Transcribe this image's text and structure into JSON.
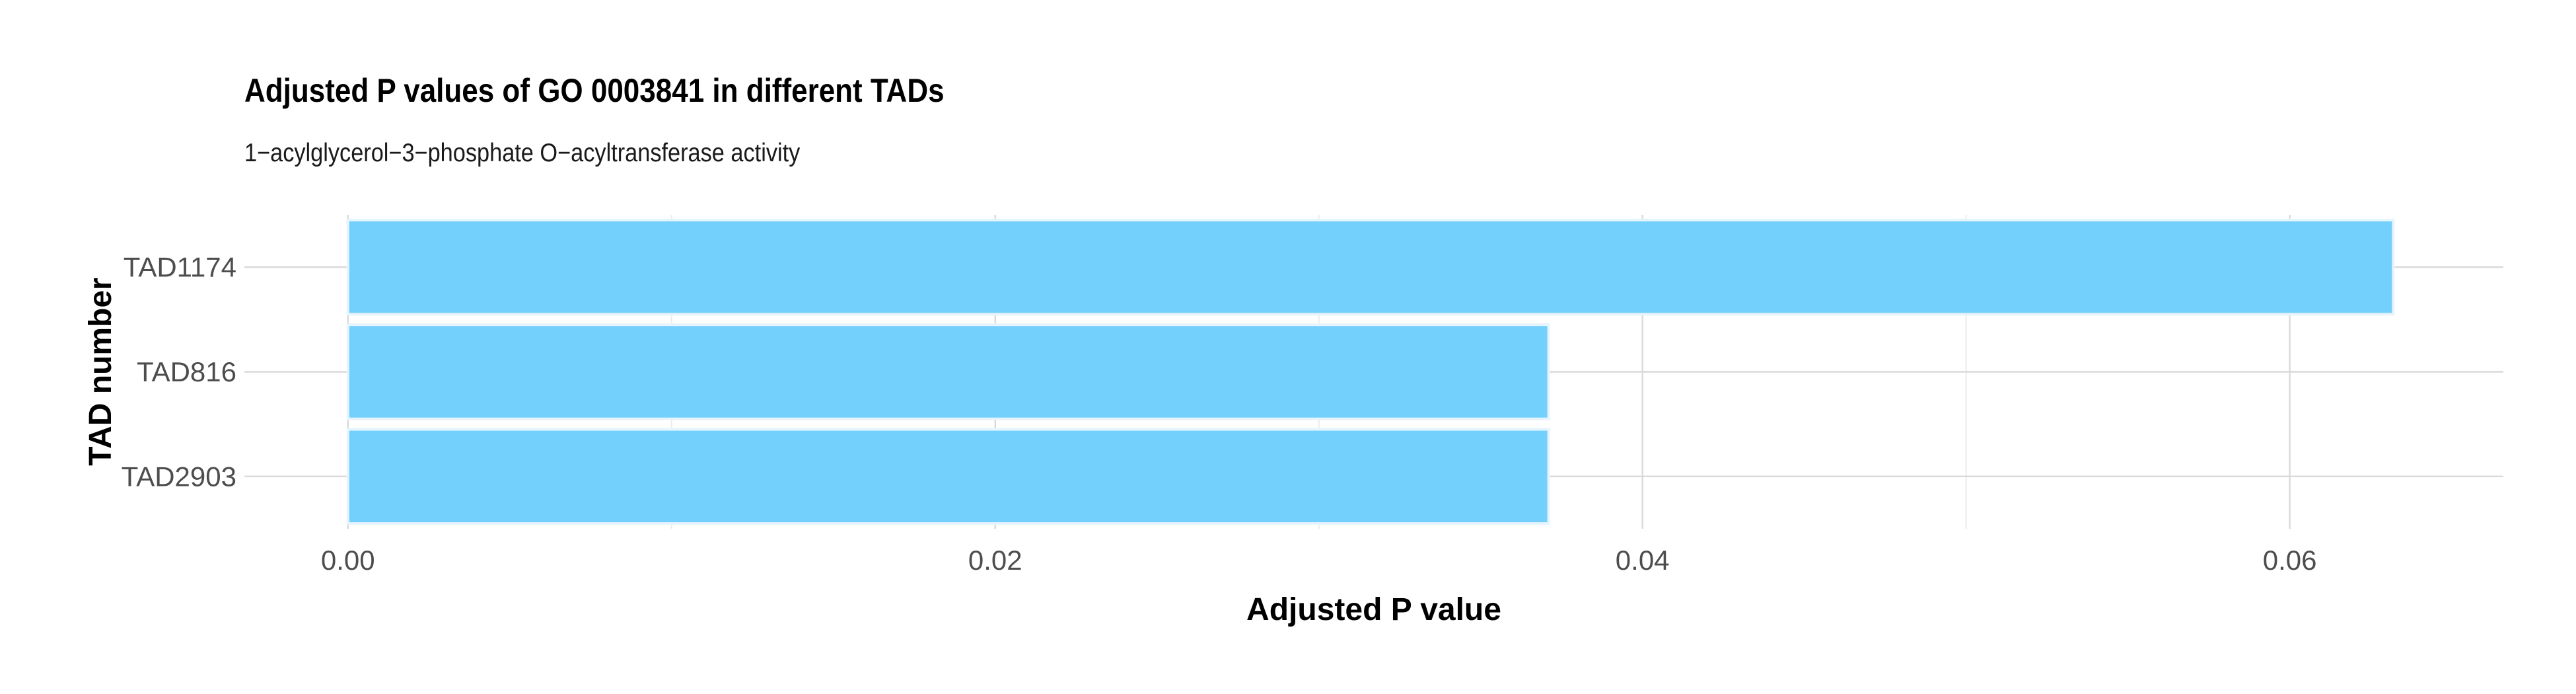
{
  "chart_data": {
    "type": "bar",
    "orientation": "horizontal",
    "title": "Adjusted P values of GO 0003841 in different TADs",
    "subtitle": "1−acylglycerol−3−phosphate O−acyltransferase activity",
    "xlabel": "Adjusted P value",
    "ylabel": "TAD number",
    "categories": [
      "TAD1174",
      "TAD816",
      "TAD2903"
    ],
    "values": [
      0.0632,
      0.0371,
      0.0371
    ],
    "xlim": [
      -0.0032,
      0.0666
    ],
    "xticks": [
      0.0,
      0.02,
      0.04,
      0.06
    ],
    "xtick_labels": [
      "0.00",
      "0.02",
      "0.04",
      "0.06"
    ],
    "grid": true,
    "legend": "none",
    "colors": {
      "bar_fill": "#73CFFB",
      "bar_stroke": "#E6F4FD",
      "grid_major": "#D9D9D9",
      "grid_minor": "#EBEBEB",
      "tick_text": "#4D4D4D"
    }
  }
}
